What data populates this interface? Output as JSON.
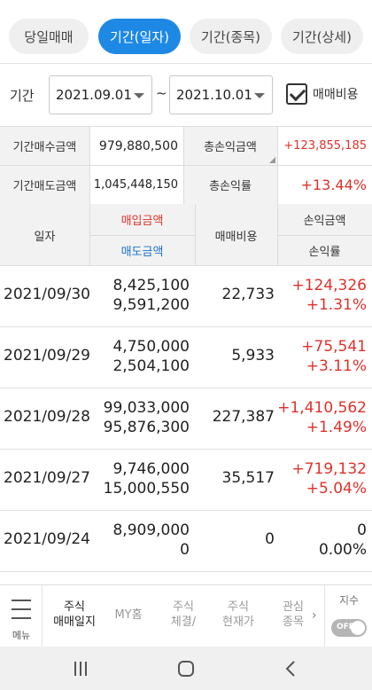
{
  "tabs": [
    {
      "label": "당일매매",
      "active": false
    },
    {
      "label": "기간(일자)",
      "active": true
    },
    {
      "label": "기간(종목)",
      "active": false
    },
    {
      "label": "기간(상세)",
      "active": false
    }
  ],
  "period": {
    "label": "기간",
    "start": "2021.09.01",
    "separator": "~",
    "end": "2021.10.01",
    "fee_checkbox_label": "매매비용",
    "fee_checked": true
  },
  "summary": {
    "buy_total_label": "기간매수금액",
    "buy_total_value": "979,880,500",
    "total_pl_label": "총손익금액",
    "total_pl_value": "+123,855,185",
    "sell_total_label": "기간매도금액",
    "sell_total_value": "1,045,448,150",
    "total_rate_label": "총손익률",
    "total_rate_value": "+13.44%"
  },
  "table": {
    "headers": {
      "date": "일자",
      "buy_amount": "매입금액",
      "sell_amount": "매도금액",
      "fee": "매매비용",
      "pl_amount": "손익금액",
      "pl_rate": "손익률"
    },
    "rows": [
      {
        "date": "2021/09/30",
        "buy": "8,425,100",
        "sell": "9,591,200",
        "fee": "22,733",
        "pl": "+124,326",
        "rate": "+1.31%",
        "positive": true
      },
      {
        "date": "2021/09/29",
        "buy": "4,750,000",
        "sell": "2,504,100",
        "fee": "5,933",
        "pl": "+75,541",
        "rate": "+3.11%",
        "positive": true
      },
      {
        "date": "2021/09/28",
        "buy": "99,033,000",
        "sell": "95,876,300",
        "fee": "227,387",
        "pl": "+1,410,562",
        "rate": "+1.49%",
        "positive": true
      },
      {
        "date": "2021/09/27",
        "buy": "9,746,000",
        "sell": "15,000,550",
        "fee": "35,517",
        "pl": "+719,132",
        "rate": "+5.04%",
        "positive": true
      },
      {
        "date": "2021/09/24",
        "buy": "8,909,000",
        "sell": "0",
        "fee": "0",
        "pl": "0",
        "rate": "0.00%",
        "positive": false
      }
    ]
  },
  "bottom_nav": {
    "menu_label": "메뉴",
    "items": [
      {
        "line1": "주식",
        "line2": "매매일지",
        "active": true
      },
      {
        "line1": "MY홈",
        "line2": "",
        "active": false
      },
      {
        "line1": "주식",
        "line2": "체결/",
        "active": false
      },
      {
        "line1": "주식",
        "line2": "현재가",
        "active": false
      },
      {
        "line1": "관심",
        "line2": "종목",
        "active": false
      }
    ],
    "index_label": "지수",
    "toggle_label": "OFF"
  },
  "colors": {
    "accent": "#1e88e5",
    "positive": "#e0312a",
    "sell": "#1a73c9"
  },
  "icons": [
    "hamburger-menu-icon",
    "dropdown-caret-icon",
    "checkmark-icon",
    "chevron-right-icon",
    "recent-apps-icon",
    "home-icon",
    "back-icon"
  ]
}
